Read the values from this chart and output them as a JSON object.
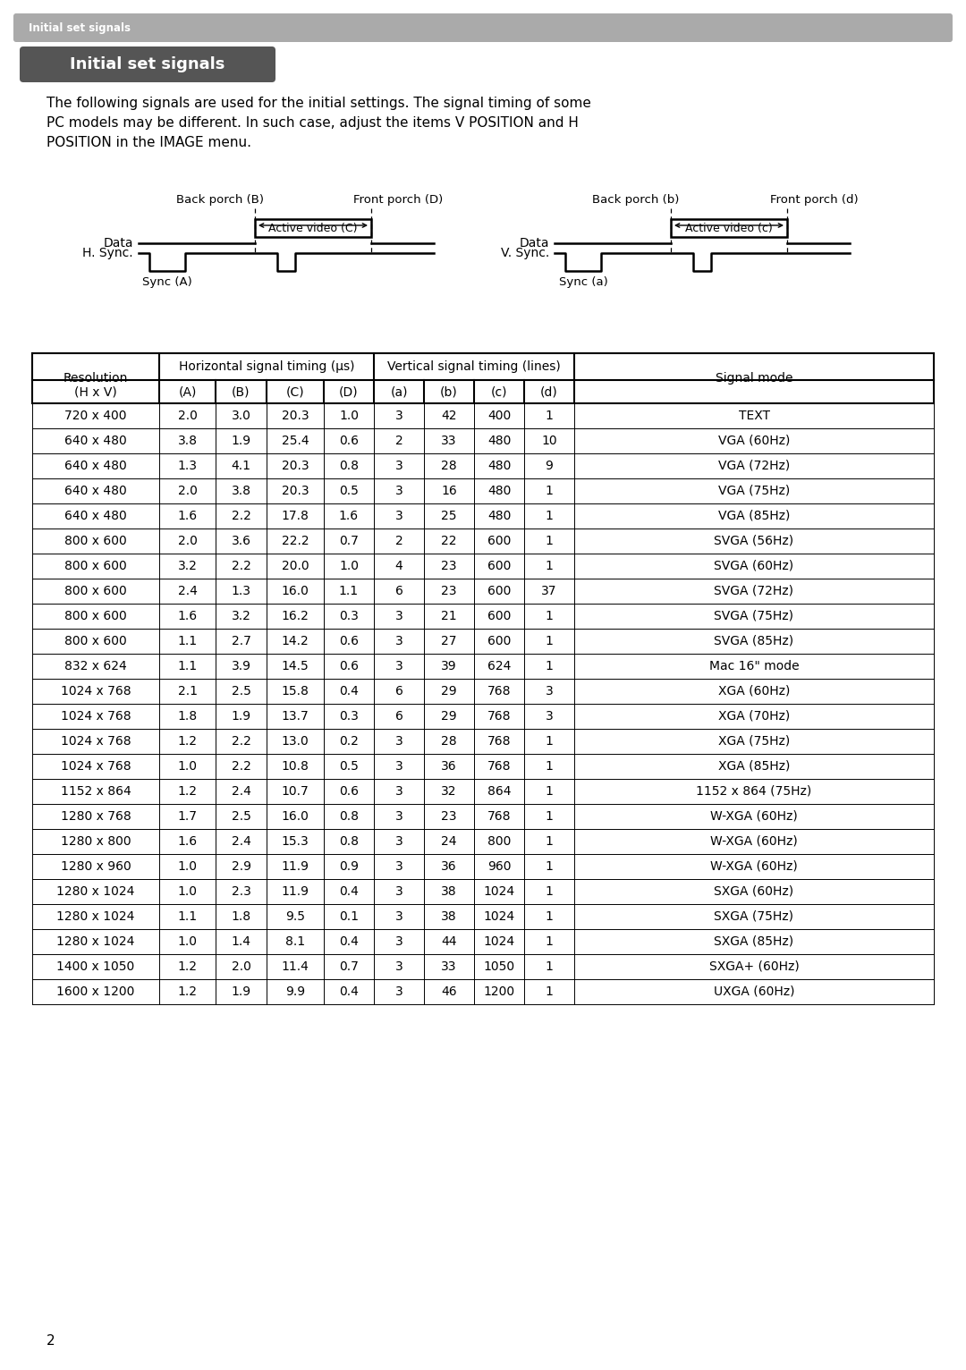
{
  "page_bg": "#ffffff",
  "header_bar_color": "#aaaaaa",
  "header_text": "Initial set signals",
  "header_text_color": "#ffffff",
  "section_title": "Initial set signals",
  "section_title_bg": "#555555",
  "section_title_color": "#ffffff",
  "body_line1": "The following signals are used for the initial settings. The signal timing of some",
  "body_line2": "PC models may be different. In such case, adjust the items V POSITION and H",
  "body_line3": "POSITION in the IMAGE menu.",
  "diagram_left": {
    "back_porch_label": "Back porch (B)",
    "front_porch_label": "Front porch (D)",
    "active_video_label": "Active video (C)",
    "data_label": "Data",
    "sync_label": "H. Sync.",
    "sync_bottom_label": "Sync (A)"
  },
  "diagram_right": {
    "back_porch_label": "Back porch (b)",
    "front_porch_label": "Front porch (d)",
    "active_video_label": "Active video (c)",
    "data_label": "Data",
    "sync_label": "V. Sync.",
    "sync_bottom_label": "Sync (a)"
  },
  "table_data": [
    [
      "720 x 400",
      "2.0",
      "3.0",
      "20.3",
      "1.0",
      "3",
      "42",
      "400",
      "1",
      "TEXT"
    ],
    [
      "640 x 480",
      "3.8",
      "1.9",
      "25.4",
      "0.6",
      "2",
      "33",
      "480",
      "10",
      "VGA (60Hz)"
    ],
    [
      "640 x 480",
      "1.3",
      "4.1",
      "20.3",
      "0.8",
      "3",
      "28",
      "480",
      "9",
      "VGA (72Hz)"
    ],
    [
      "640 x 480",
      "2.0",
      "3.8",
      "20.3",
      "0.5",
      "3",
      "16",
      "480",
      "1",
      "VGA (75Hz)"
    ],
    [
      "640 x 480",
      "1.6",
      "2.2",
      "17.8",
      "1.6",
      "3",
      "25",
      "480",
      "1",
      "VGA (85Hz)"
    ],
    [
      "800 x 600",
      "2.0",
      "3.6",
      "22.2",
      "0.7",
      "2",
      "22",
      "600",
      "1",
      "SVGA (56Hz)"
    ],
    [
      "800 x 600",
      "3.2",
      "2.2",
      "20.0",
      "1.0",
      "4",
      "23",
      "600",
      "1",
      "SVGA (60Hz)"
    ],
    [
      "800 x 600",
      "2.4",
      "1.3",
      "16.0",
      "1.1",
      "6",
      "23",
      "600",
      "37",
      "SVGA (72Hz)"
    ],
    [
      "800 x 600",
      "1.6",
      "3.2",
      "16.2",
      "0.3",
      "3",
      "21",
      "600",
      "1",
      "SVGA (75Hz)"
    ],
    [
      "800 x 600",
      "1.1",
      "2.7",
      "14.2",
      "0.6",
      "3",
      "27",
      "600",
      "1",
      "SVGA (85Hz)"
    ],
    [
      "832 x 624",
      "1.1",
      "3.9",
      "14.5",
      "0.6",
      "3",
      "39",
      "624",
      "1",
      "Mac 16\" mode"
    ],
    [
      "1024 x 768",
      "2.1",
      "2.5",
      "15.8",
      "0.4",
      "6",
      "29",
      "768",
      "3",
      "XGA (60Hz)"
    ],
    [
      "1024 x 768",
      "1.8",
      "1.9",
      "13.7",
      "0.3",
      "6",
      "29",
      "768",
      "3",
      "XGA (70Hz)"
    ],
    [
      "1024 x 768",
      "1.2",
      "2.2",
      "13.0",
      "0.2",
      "3",
      "28",
      "768",
      "1",
      "XGA (75Hz)"
    ],
    [
      "1024 x 768",
      "1.0",
      "2.2",
      "10.8",
      "0.5",
      "3",
      "36",
      "768",
      "1",
      "XGA (85Hz)"
    ],
    [
      "1152 x 864",
      "1.2",
      "2.4",
      "10.7",
      "0.6",
      "3",
      "32",
      "864",
      "1",
      "1152 x 864 (75Hz)"
    ],
    [
      "1280 x 768",
      "1.7",
      "2.5",
      "16.0",
      "0.8",
      "3",
      "23",
      "768",
      "1",
      "W-XGA (60Hz)"
    ],
    [
      "1280 x 800",
      "1.6",
      "2.4",
      "15.3",
      "0.8",
      "3",
      "24",
      "800",
      "1",
      "W-XGA (60Hz)"
    ],
    [
      "1280 x 960",
      "1.0",
      "2.9",
      "11.9",
      "0.9",
      "3",
      "36",
      "960",
      "1",
      "W-XGA (60Hz)"
    ],
    [
      "1280 x 1024",
      "1.0",
      "2.3",
      "11.9",
      "0.4",
      "3",
      "38",
      "1024",
      "1",
      "SXGA (60Hz)"
    ],
    [
      "1280 x 1024",
      "1.1",
      "1.8",
      "9.5",
      "0.1",
      "3",
      "38",
      "1024",
      "1",
      "SXGA (75Hz)"
    ],
    [
      "1280 x 1024",
      "1.0",
      "1.4",
      "8.1",
      "0.4",
      "3",
      "44",
      "1024",
      "1",
      "SXGA (85Hz)"
    ],
    [
      "1400 x 1050",
      "1.2",
      "2.0",
      "11.4",
      "0.7",
      "3",
      "33",
      "1050",
      "1",
      "SXGA+ (60Hz)"
    ],
    [
      "1600 x 1200",
      "1.2",
      "1.9",
      "9.9",
      "0.4",
      "3",
      "46",
      "1200",
      "1",
      "UXGA (60Hz)"
    ]
  ],
  "page_number": "2"
}
